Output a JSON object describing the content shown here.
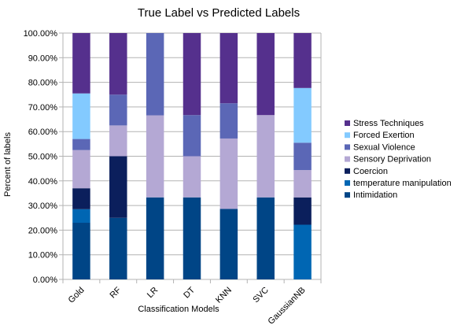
{
  "chart_data": {
    "type": "bar",
    "stacked": true,
    "title": "True Label vs Predicted Labels",
    "xlabel": "Classification Models",
    "ylabel": "Percent of labels",
    "ylim": [
      0,
      100
    ],
    "yticks": [
      "0.00%",
      "10.00%",
      "20.00%",
      "30.00%",
      "40.00%",
      "50.00%",
      "60.00%",
      "70.00%",
      "80.00%",
      "90.00%",
      "100.00%"
    ],
    "grid": true,
    "legend_position": "right",
    "categories": [
      "Gold",
      "RF",
      "LR",
      "DT",
      "KNN",
      "SVC",
      "GaussianNB"
    ],
    "series": [
      {
        "name": "Intimidation",
        "color": "#004586",
        "values": [
          23,
          25,
          33.3,
          33.3,
          28.6,
          33.3,
          0
        ]
      },
      {
        "name": "temperature manipulation",
        "color": "#0066b3",
        "values": [
          5.5,
          0,
          0,
          0,
          0,
          0,
          22.2
        ]
      },
      {
        "name": "Coercion",
        "color": "#0b1f5c",
        "values": [
          8.5,
          25,
          0,
          0,
          0,
          0,
          11.1
        ]
      },
      {
        "name": "Sensory Deprivation",
        "color": "#b4a8d4",
        "values": [
          15.5,
          12.5,
          33.3,
          16.7,
          28.6,
          33.4,
          11.1
        ]
      },
      {
        "name": "Sexual Violence",
        "color": "#5b67b6",
        "values": [
          4.5,
          12.5,
          33.4,
          16.7,
          14.3,
          0,
          11.1
        ]
      },
      {
        "name": "Forced Exertion",
        "color": "#83caff",
        "values": [
          18.5,
          0,
          0,
          0,
          0,
          0,
          22.2
        ]
      },
      {
        "name": "Stress Techniques",
        "color": "#55308d",
        "values": [
          24.5,
          25,
          0,
          33.3,
          28.5,
          33.3,
          22.3
        ]
      }
    ]
  }
}
